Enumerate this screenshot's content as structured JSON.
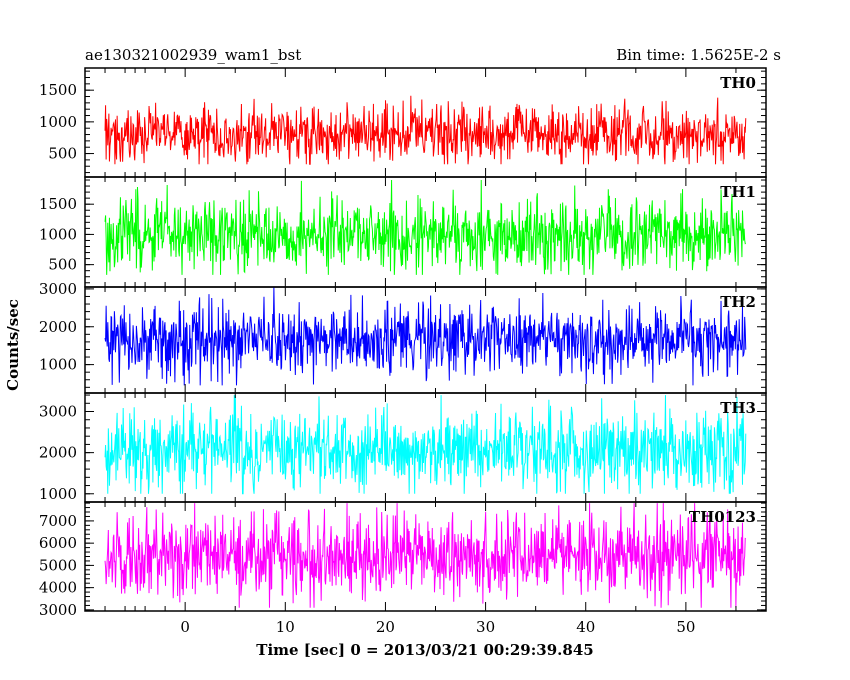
{
  "header": {
    "left_title": "ae130321002939_wam1_bst",
    "right_title": "Bin time: 1.5625E-2 s"
  },
  "chart_data": {
    "type": "line",
    "xlabel": "Time [sec] 0 = 2013/03/21 00:29:39.845",
    "ylabel": "Counts/sec",
    "x_range": [
      -10,
      58
    ],
    "x_ticks": [
      0,
      10,
      20,
      30,
      40,
      50
    ],
    "x_tick_labels": [
      "0",
      "10",
      "20",
      "30",
      "40",
      "50"
    ],
    "data_x_range": [
      -8,
      56
    ],
    "panels": [
      {
        "name": "TH0",
        "color": "#ff0000",
        "ylim": [
          130,
          1850
        ],
        "y_ticks": [
          500,
          1000,
          1500
        ],
        "y_tick_labels": [
          "500",
          "1000",
          "1500"
        ],
        "mean": 800,
        "sigma": 230,
        "min": 330,
        "max": 1800
      },
      {
        "name": "TH1",
        "color": "#00ff00",
        "ylim": [
          130,
          1950
        ],
        "y_ticks": [
          500,
          1000,
          1500
        ],
        "y_tick_labels": [
          "500",
          "1000",
          "1500"
        ],
        "mean": 1000,
        "sigma": 300,
        "min": 330,
        "max": 1900
      },
      {
        "name": "TH2",
        "color": "#0000ff",
        "ylim": [
          250,
          3050
        ],
        "y_ticks": [
          1000,
          2000,
          3000
        ],
        "y_tick_labels": [
          "1000",
          "2000",
          "3000"
        ],
        "mean": 1650,
        "sigma": 480,
        "min": 450,
        "max": 3050
      },
      {
        "name": "TH3",
        "color": "#00ffff",
        "ylim": [
          800,
          3450
        ],
        "y_ticks": [
          1000,
          2000,
          3000
        ],
        "y_tick_labels": [
          "1000",
          "2000",
          "3000"
        ],
        "mean": 2050,
        "sigma": 500,
        "min": 1000,
        "max": 3400
      },
      {
        "name": "TH0123",
        "color": "#ff00ff",
        "ylim": [
          2950,
          7850
        ],
        "y_ticks": [
          3000,
          4000,
          5000,
          6000,
          7000
        ],
        "y_tick_labels": [
          "3000",
          "4000",
          "5000",
          "6000",
          "7000"
        ],
        "mean": 5400,
        "sigma": 950,
        "min": 3100,
        "max": 7800
      }
    ]
  }
}
